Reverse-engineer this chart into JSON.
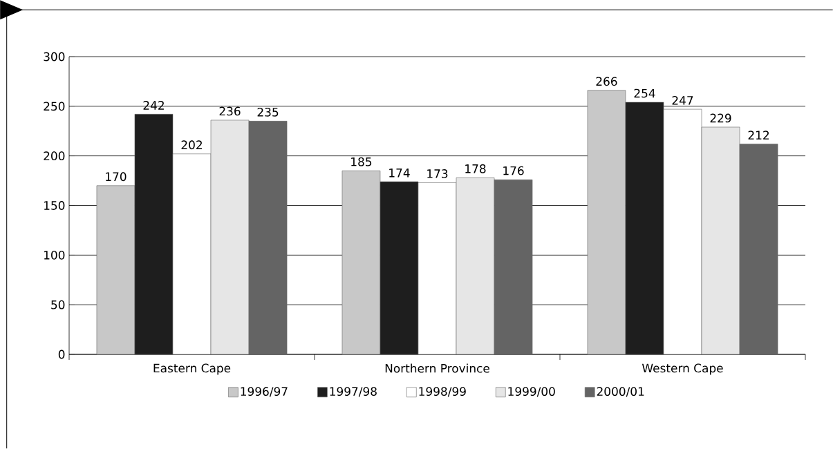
{
  "chart_data": {
    "type": "bar",
    "categories": [
      "Eastern Cape",
      "Northern Province",
      "Western Cape"
    ],
    "series": [
      {
        "name": "1996/97",
        "color": "#c8c8c8",
        "values": [
          170,
          185,
          266
        ]
      },
      {
        "name": "1997/98",
        "color": "#1e1e1e",
        "values": [
          242,
          174,
          254
        ]
      },
      {
        "name": "1998/99",
        "color": "#ffffff",
        "values": [
          202,
          173,
          247
        ]
      },
      {
        "name": "1999/00",
        "color": "#e6e6e6",
        "values": [
          236,
          178,
          229
        ]
      },
      {
        "name": "2000/01",
        "color": "#646464",
        "values": [
          235,
          176,
          212
        ]
      }
    ],
    "ylim": [
      0,
      300
    ],
    "yticks": [
      0,
      50,
      100,
      150,
      200,
      250,
      300
    ],
    "grid": "y",
    "legend": "bottom",
    "data_labels": true
  }
}
